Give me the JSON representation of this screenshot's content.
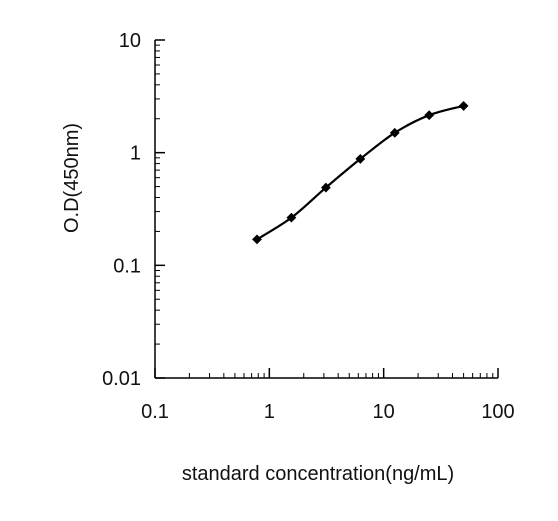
{
  "chart_data": {
    "type": "line",
    "title": "",
    "xlabel": "standard concentration(ng/mL)",
    "ylabel": "O.D(450nm)",
    "x_scale": "log",
    "y_scale": "log",
    "xlim": [
      0.1,
      100
    ],
    "ylim": [
      0.01,
      10
    ],
    "x_ticks": [
      0.1,
      1,
      10,
      100
    ],
    "x_tick_labels": [
      "0.1",
      "1",
      "10",
      "100"
    ],
    "y_ticks": [
      0.01,
      0.1,
      1,
      10
    ],
    "y_tick_labels": [
      "0.01",
      "0.1",
      "1",
      "10"
    ],
    "grid": false,
    "legend": "none",
    "series": [
      {
        "x": [
          0.78,
          1.56,
          3.125,
          6.25,
          12.5,
          25,
          50
        ],
        "y": [
          0.17,
          0.265,
          0.49,
          0.88,
          1.5,
          2.15,
          2.6
        ]
      }
    ],
    "line_color": "#000000",
    "marker": "diamond"
  }
}
